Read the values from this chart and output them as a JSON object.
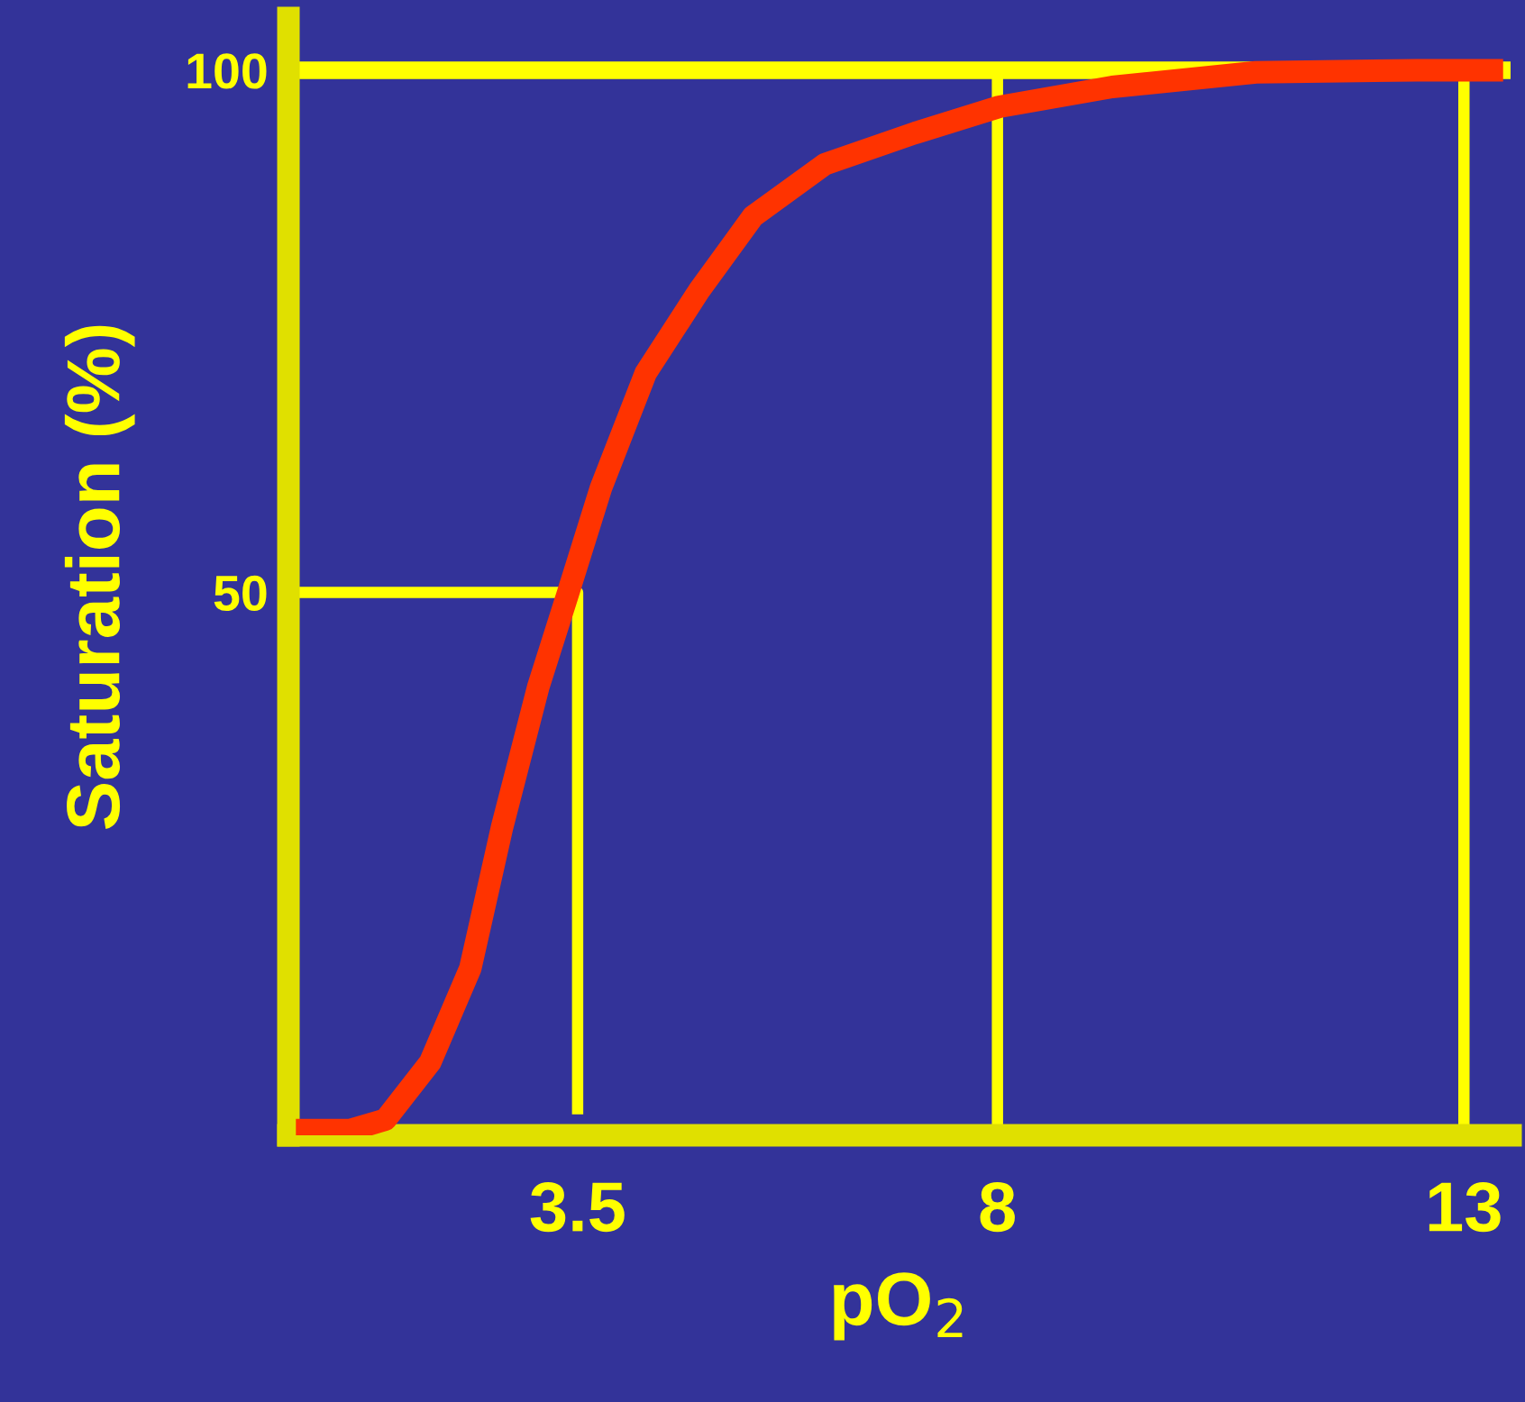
{
  "chart_data": {
    "type": "line",
    "xlabel": "pO$_{2}$",
    "ylabel": "Saturation (%)",
    "xlim": [
      0.4,
      13.5
    ],
    "ylim": [
      -2,
      105
    ],
    "xticks": [
      3.5,
      8,
      13
    ],
    "yticks": [
      50,
      100
    ],
    "legend": false,
    "marker": "none",
    "line_style": "solid",
    "ref_lines": [
      {
        "axis": "y",
        "value": 100,
        "color": "#ffff00"
      },
      {
        "axis": "x",
        "value": 8,
        "color": "#ffff00"
      },
      {
        "axis": "x",
        "value": 13,
        "color": "#ffff00"
      }
    ],
    "series": [
      {
        "color": "#ff3300",
        "x": [
          0.48,
          1.06,
          1.44,
          1.92,
          2.35,
          2.69,
          3.08,
          3.4,
          3.75,
          4.23,
          4.81,
          5.38,
          6.15,
          7.12,
          8.02,
          9.23,
          10.77,
          12.5,
          13.42
        ],
        "values": [
          -1.5,
          -1.5,
          -0.5,
          5,
          14,
          27.5,
          41,
          50,
          60,
          71,
          79,
          86,
          91,
          94,
          96.5,
          98.4,
          99.8,
          100,
          100
        ]
      },
      {
        "color": "#ffff00",
        "x": [
          0.48,
          3.5,
          3.5
        ],
        "values": [
          50,
          50,
          0
        ]
      }
    ]
  }
}
